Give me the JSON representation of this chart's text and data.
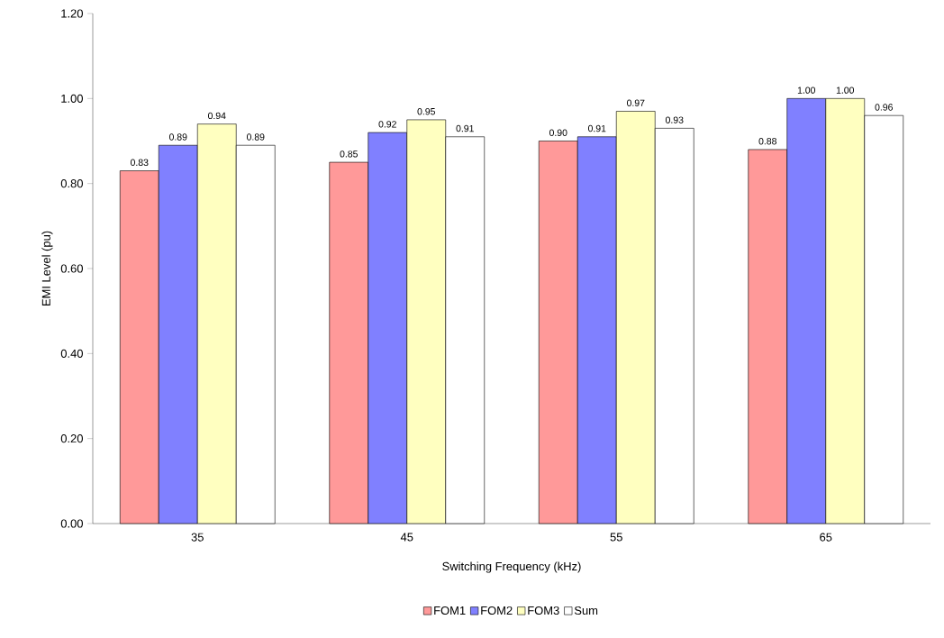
{
  "chart_data": {
    "type": "bar",
    "xlabel": "Switching Frequency (kHz)",
    "ylabel": "EMI Level (pu)",
    "categories": [
      "35",
      "45",
      "55",
      "65"
    ],
    "series": [
      {
        "name": "FOM1",
        "color": "#ff9999",
        "values": [
          0.83,
          0.85,
          0.9,
          0.88
        ],
        "value_labels": [
          "0.83",
          "0.85",
          "0.90",
          "0.88"
        ]
      },
      {
        "name": "FOM2",
        "color": "#8080ff",
        "values": [
          0.89,
          0.92,
          0.91,
          1.0
        ],
        "value_labels": [
          "0.89",
          "0.92",
          "0.91",
          "1.00"
        ]
      },
      {
        "name": "FOM3",
        "color": "#ffffc0",
        "values": [
          0.94,
          0.95,
          0.97,
          1.0
        ],
        "value_labels": [
          "0.94",
          "0.95",
          "0.97",
          "1.00"
        ]
      },
      {
        "name": "Sum",
        "color": "#ffffff",
        "values": [
          0.89,
          0.91,
          0.93,
          0.96
        ],
        "value_labels": [
          "0.89",
          "0.91",
          "0.93",
          "0.96"
        ]
      }
    ],
    "ylim": [
      0,
      1.2
    ],
    "yticks": [
      {
        "value": 0,
        "label": "0.00"
      },
      {
        "value": 0.2,
        "label": "0.20"
      },
      {
        "value": 0.4,
        "label": "0.40"
      },
      {
        "value": 0.6,
        "label": "0.60"
      },
      {
        "value": 0.8,
        "label": "0.80"
      },
      {
        "value": 1.0,
        "label": "1.00"
      },
      {
        "value": 1.2,
        "label": "1.20"
      }
    ],
    "legend": "bottom"
  }
}
